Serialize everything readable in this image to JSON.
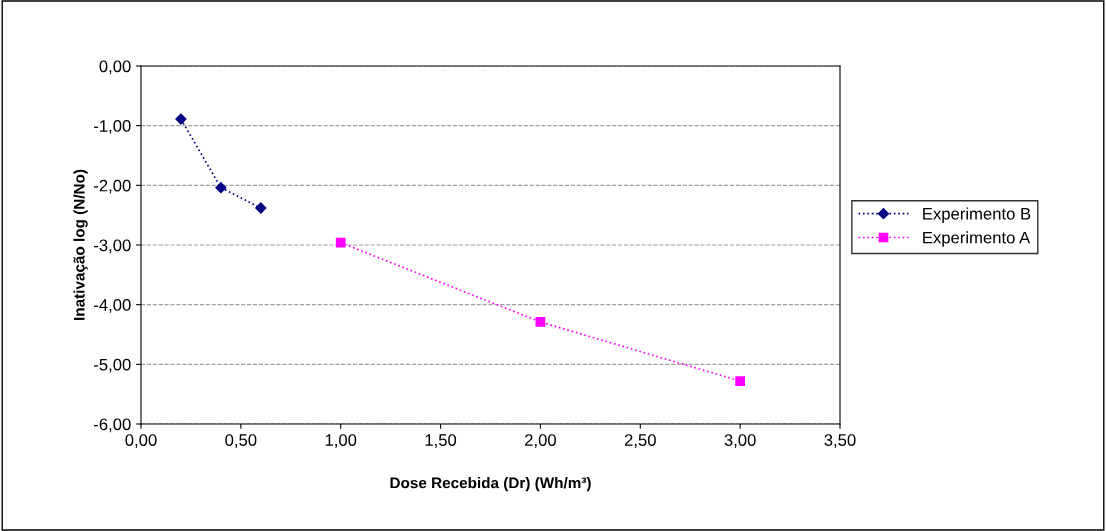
{
  "chart_data": {
    "type": "line",
    "xlabel": "Dose Recebida (Dr) (Wh/m³)",
    "ylabel": "Inativação log (N/No)",
    "series": [
      {
        "name": "Experimento B",
        "color": "#000080",
        "marker": "diamond",
        "line_style": "dotted",
        "x": [
          0.2,
          0.4,
          0.6
        ],
        "values": [
          -0.89,
          -2.04,
          -2.38
        ]
      },
      {
        "name": "Experimento A",
        "color": "#ff00ff",
        "marker": "square",
        "line_style": "dotted",
        "x": [
          1.0,
          2.0,
          3.0
        ],
        "values": [
          -2.96,
          -4.29,
          -5.28
        ]
      }
    ],
    "xlim": [
      0,
      3.5
    ],
    "xticks": [
      {
        "value": 0,
        "label": "0,00"
      },
      {
        "value": 0.5,
        "label": "0,50"
      },
      {
        "value": 1,
        "label": "1,00"
      },
      {
        "value": 1.5,
        "label": "1,50"
      },
      {
        "value": 2,
        "label": "2,00"
      },
      {
        "value": 2.5,
        "label": "2,50"
      },
      {
        "value": 3,
        "label": "3,00"
      },
      {
        "value": 3.5,
        "label": "3,50"
      }
    ],
    "ylim": [
      -6,
      0
    ],
    "yticks": [
      {
        "value": -6,
        "label": "-6,00"
      },
      {
        "value": -5,
        "label": "-5,00"
      },
      {
        "value": -4,
        "label": "-4,00"
      },
      {
        "value": -3,
        "label": "-3,00"
      },
      {
        "value": -2,
        "label": "-2,00"
      },
      {
        "value": -1,
        "label": "-1,00"
      },
      {
        "value": 0,
        "label": "0,00"
      }
    ],
    "grid": "y",
    "legend": "right"
  }
}
